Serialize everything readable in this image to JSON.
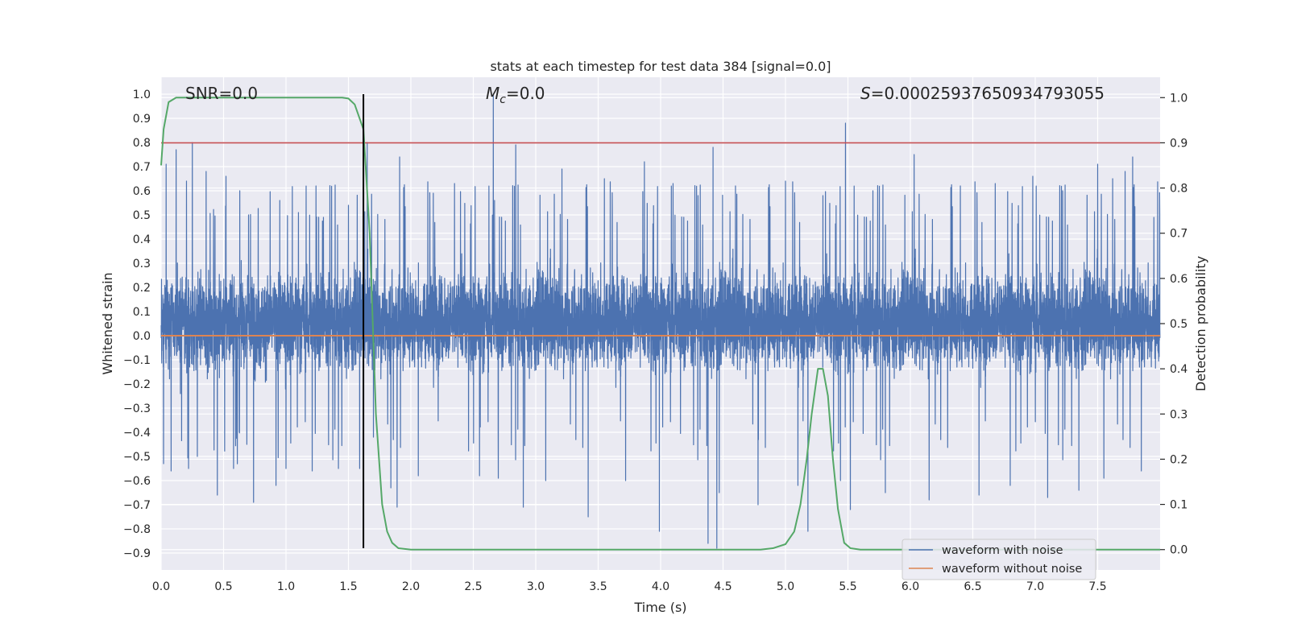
{
  "chart_data": {
    "type": "line",
    "title": "stats at each timestep for test data 384 [signal=0.0]",
    "xlabel": "Time (s)",
    "ylabel": "Whitened strain",
    "ylabel_right": "Detection probability",
    "xlim": [
      0.0,
      8.0
    ],
    "ylim": [
      -0.97,
      1.07
    ],
    "ylim_right": [
      -0.045,
      1.045
    ],
    "x_ticks": [
      0.0,
      0.5,
      1.0,
      1.5,
      2.0,
      2.5,
      3.0,
      3.5,
      4.0,
      4.5,
      5.0,
      5.5,
      6.0,
      6.5,
      7.0,
      7.5
    ],
    "x_tick_labels": [
      "0.0",
      "0.5",
      "1.0",
      "1.5",
      "2.0",
      "2.5",
      "3.0",
      "3.5",
      "4.0",
      "4.5",
      "5.0",
      "5.5",
      "6.0",
      "6.5",
      "7.0",
      "7.5"
    ],
    "y_ticks": [
      -0.9,
      -0.8,
      -0.7,
      -0.6,
      -0.5,
      -0.4,
      -0.3,
      -0.2,
      -0.1,
      0.0,
      0.1,
      0.2,
      0.3,
      0.4,
      0.5,
      0.6,
      0.7,
      0.8,
      0.9,
      1.0
    ],
    "y_tick_labels": [
      "−0.9",
      "−0.8",
      "−0.7",
      "−0.6",
      "−0.5",
      "−0.4",
      "−0.3",
      "−0.2",
      "−0.1",
      "0.0",
      "0.1",
      "0.2",
      "0.3",
      "0.4",
      "0.5",
      "0.6",
      "0.7",
      "0.8",
      "0.9",
      "1.0"
    ],
    "y_right_ticks": [
      0.0,
      0.1,
      0.2,
      0.3,
      0.4,
      0.5,
      0.6,
      0.7,
      0.8,
      0.9,
      1.0
    ],
    "y_right_tick_labels": [
      "0.0",
      "0.1",
      "0.2",
      "0.3",
      "0.4",
      "0.5",
      "0.6",
      "0.7",
      "0.8",
      "0.9",
      "1.0"
    ],
    "annotations": {
      "snr": "SNR=0.0",
      "mc_symbol": "M",
      "mc_sub": "c",
      "mc_value": "=0.0",
      "s_symbol": "S",
      "s_value": "=0.00025937650934793055"
    },
    "legend": {
      "position": "lower right",
      "entries": [
        {
          "label": "waveform with noise",
          "color": "#4c72b0"
        },
        {
          "label": "waveform without noise",
          "color": "#dd8452"
        }
      ]
    },
    "colors": {
      "noise": "#4c72b0",
      "clean": "#dd8452",
      "probability": "#55a868",
      "threshold": "#c44e52",
      "marker": "#000000",
      "plot_bg": "#eaeaf2",
      "grid": "#ffffff"
    },
    "series": [
      {
        "name": "waveform with noise",
        "kind": "noise",
        "samples": 8192,
        "core_envelope": [
          -0.13,
          0.25
        ],
        "typical_envelope": [
          -0.32,
          0.43
        ],
        "spikes": [
          {
            "x": 0.02,
            "y": -0.53
          },
          {
            "x": 0.04,
            "y": 0.71
          },
          {
            "x": 0.08,
            "y": -0.56
          },
          {
            "x": 0.12,
            "y": 0.77
          },
          {
            "x": 0.22,
            "y": -0.55
          },
          {
            "x": 0.25,
            "y": 0.8
          },
          {
            "x": 0.29,
            "y": -0.5
          },
          {
            "x": 0.36,
            "y": 0.68
          },
          {
            "x": 0.45,
            "y": -0.66
          },
          {
            "x": 0.52,
            "y": 0.66
          },
          {
            "x": 0.58,
            "y": -0.55
          },
          {
            "x": 0.63,
            "y": 0.6
          },
          {
            "x": 0.7,
            "y": 0.5
          },
          {
            "x": 0.74,
            "y": -0.69
          },
          {
            "x": 0.92,
            "y": -0.62
          },
          {
            "x": 0.95,
            "y": 0.56
          },
          {
            "x": 1.0,
            "y": -0.55
          },
          {
            "x": 1.1,
            "y": 0.51
          },
          {
            "x": 1.21,
            "y": -0.56
          },
          {
            "x": 1.24,
            "y": 0.62
          },
          {
            "x": 1.3,
            "y": 0.49
          },
          {
            "x": 1.42,
            "y": -0.55
          },
          {
            "x": 1.5,
            "y": 0.54
          },
          {
            "x": 1.59,
            "y": -0.55
          },
          {
            "x": 1.65,
            "y": 0.8
          },
          {
            "x": 1.7,
            "y": -0.42
          },
          {
            "x": 1.84,
            "y": -0.63
          },
          {
            "x": 1.89,
            "y": -0.71
          },
          {
            "x": 1.91,
            "y": 0.74
          },
          {
            "x": 2.06,
            "y": -0.58
          },
          {
            "x": 2.18,
            "y": 0.59
          },
          {
            "x": 2.35,
            "y": 0.63
          },
          {
            "x": 2.55,
            "y": -0.58
          },
          {
            "x": 2.66,
            "y": 1.0
          },
          {
            "x": 2.67,
            "y": 0.56
          },
          {
            "x": 2.7,
            "y": -0.59
          },
          {
            "x": 2.84,
            "y": 0.79
          },
          {
            "x": 2.9,
            "y": -0.71
          },
          {
            "x": 3.08,
            "y": -0.6
          },
          {
            "x": 3.21,
            "y": 0.69
          },
          {
            "x": 3.42,
            "y": -0.75
          },
          {
            "x": 3.55,
            "y": 0.65
          },
          {
            "x": 3.72,
            "y": -0.6
          },
          {
            "x": 3.87,
            "y": 0.72
          },
          {
            "x": 3.99,
            "y": -0.81
          },
          {
            "x": 4.1,
            "y": 0.63
          },
          {
            "x": 4.3,
            "y": 0.58
          },
          {
            "x": 4.38,
            "y": -0.86
          },
          {
            "x": 4.42,
            "y": 0.78
          },
          {
            "x": 4.45,
            "y": -0.88
          },
          {
            "x": 4.47,
            "y": -0.65
          },
          {
            "x": 4.6,
            "y": 0.62
          },
          {
            "x": 4.78,
            "y": -0.7
          },
          {
            "x": 5.0,
            "y": 0.64
          },
          {
            "x": 5.1,
            "y": -0.62
          },
          {
            "x": 5.18,
            "y": -0.81
          },
          {
            "x": 5.3,
            "y": 0.58
          },
          {
            "x": 5.44,
            "y": -0.6
          },
          {
            "x": 5.48,
            "y": 0.88
          },
          {
            "x": 5.52,
            "y": -0.72
          },
          {
            "x": 5.7,
            "y": 0.6
          },
          {
            "x": 5.8,
            "y": -0.65
          },
          {
            "x": 6.03,
            "y": 0.75
          },
          {
            "x": 6.15,
            "y": -0.68
          },
          {
            "x": 6.4,
            "y": 0.62
          },
          {
            "x": 6.55,
            "y": -0.66
          },
          {
            "x": 6.68,
            "y": 0.63
          },
          {
            "x": 6.8,
            "y": -0.62
          },
          {
            "x": 6.98,
            "y": 0.66
          },
          {
            "x": 7.1,
            "y": -0.67
          },
          {
            "x": 7.22,
            "y": 0.6
          },
          {
            "x": 7.35,
            "y": -0.64
          },
          {
            "x": 7.5,
            "y": 0.71
          },
          {
            "x": 7.55,
            "y": -0.59
          },
          {
            "x": 7.62,
            "y": 0.65
          },
          {
            "x": 7.72,
            "y": 0.68
          },
          {
            "x": 7.78,
            "y": 0.74
          },
          {
            "x": 7.85,
            "y": -0.56
          },
          {
            "x": 7.95,
            "y": 0.49
          }
        ]
      },
      {
        "name": "waveform without noise",
        "kind": "line",
        "x": [
          0.0,
          8.0
        ],
        "values": [
          0.0,
          0.0
        ]
      },
      {
        "name": "detection probability",
        "kind": "line",
        "axis": "right",
        "x": [
          0.0,
          0.02,
          0.06,
          0.12,
          0.2,
          1.2,
          1.45,
          1.5,
          1.55,
          1.62,
          1.67,
          1.72,
          1.77,
          1.81,
          1.85,
          1.9,
          2.0,
          4.5,
          4.8,
          4.9,
          5.0,
          5.07,
          5.12,
          5.17,
          5.21,
          5.26,
          5.3,
          5.34,
          5.38,
          5.42,
          5.47,
          5.52,
          5.6,
          8.0
        ],
        "values": [
          0.85,
          0.93,
          0.99,
          1.0,
          1.0,
          1.0,
          1.0,
          0.998,
          0.985,
          0.93,
          0.7,
          0.3,
          0.1,
          0.04,
          0.015,
          0.003,
          0.0,
          0.0,
          0.0,
          0.003,
          0.012,
          0.04,
          0.1,
          0.2,
          0.3,
          0.4,
          0.4,
          0.34,
          0.2,
          0.09,
          0.015,
          0.003,
          0.0,
          0.0
        ]
      },
      {
        "name": "threshold",
        "kind": "hline",
        "axis": "right",
        "value": 0.9
      },
      {
        "name": "detection time",
        "kind": "vline",
        "x": 1.62,
        "y_range": [
          -0.88,
          1.0
        ]
      }
    ]
  }
}
